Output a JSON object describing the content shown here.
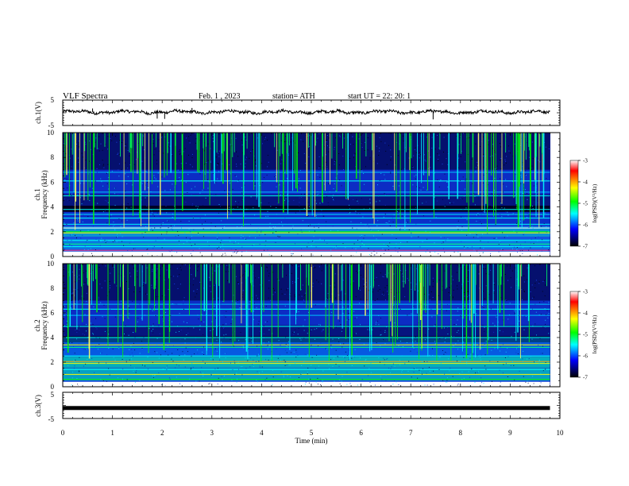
{
  "header": {
    "title": "VLF  Spectra",
    "date": "Feb. 1  , 2023",
    "station": "station= ATH",
    "start": "start  UT  =    22: 20: 1"
  },
  "chart_data": [
    {
      "type": "line",
      "name": "ch1-waveform",
      "ylabel": "ch.1(V)",
      "ylim": [
        -5,
        5
      ],
      "ytick_labels": [
        "5",
        "-5"
      ],
      "xlim": [
        0,
        10
      ],
      "x_end": 9.8,
      "approx_level": 0.3
    },
    {
      "type": "heatmap",
      "name": "ch1-spectrogram",
      "ylabel_lines": [
        "ch.1",
        "Frequency  (kHz)"
      ],
      "ylim": [
        0,
        10
      ],
      "ytick_labels": [
        "0",
        "2",
        "4",
        "6",
        "8",
        "10"
      ],
      "xlim": [
        0,
        10
      ],
      "x_end": 9.8,
      "colorbar": {
        "label": "log(PSD)(V²/Hz)",
        "range": [
          -7,
          -3
        ],
        "tick_labels": [
          "-3",
          "-4",
          "-5",
          "-6",
          "-7"
        ],
        "colors": [
          "#ffffff",
          "#ff0000",
          "#ffff00",
          "#00ff00",
          "#00ffff",
          "#0000ff",
          "#000000"
        ]
      }
    },
    {
      "type": "heatmap",
      "name": "ch2-spectrogram",
      "ylabel_lines": [
        "ch.2",
        "Frequency  (kHz)"
      ],
      "ylim": [
        0,
        10
      ],
      "ytick_labels": [
        "0",
        "2",
        "4",
        "6",
        "8",
        "10"
      ],
      "xlim": [
        0,
        10
      ],
      "x_end": 9.8,
      "colorbar": {
        "label": "log(PSD)(V²/Hz)",
        "range": [
          -7,
          -3
        ],
        "tick_labels": [
          "-3",
          "-4",
          "-5",
          "-6",
          "-7"
        ],
        "colors": [
          "#ffffff",
          "#ff0000",
          "#ffff00",
          "#00ff00",
          "#00ffff",
          "#0000ff",
          "#000000"
        ]
      }
    },
    {
      "type": "line",
      "name": "ch3-waveform",
      "ylabel": "ch.3(V)",
      "ylim": [
        -5,
        5
      ],
      "ytick_labels": [
        "5",
        "-5"
      ],
      "xlim": [
        0,
        10
      ],
      "x_end": 9.8,
      "approx_level": -1.0
    }
  ],
  "xaxis": {
    "label": "Time  (min)",
    "tick_labels": [
      "0",
      "1",
      "2",
      "3",
      "4",
      "5",
      "6",
      "7",
      "8",
      "9",
      "10"
    ]
  }
}
